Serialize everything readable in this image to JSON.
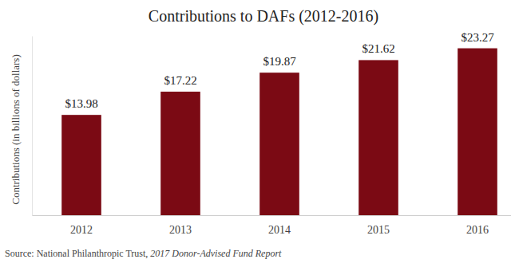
{
  "chart_data": {
    "type": "bar",
    "title": "Contributions to DAFs (2012-2016)",
    "y_label": "Contributions (in billions of dollars)",
    "annotations": [
      "Source: National Philanthropic Trust, ",
      "2017 Donor-Advised Fund Report"
    ],
    "categories": [
      "2012",
      "2013",
      "2014",
      "2015",
      "2016"
    ],
    "values": [
      13.98,
      17.22,
      19.87,
      21.62,
      23.27
    ],
    "value_labels": [
      "$13.98",
      "$17.22",
      "$19.87",
      "$21.62",
      "$23.27"
    ],
    "color": "#7b0a14",
    "ylim": [
      0,
      25
    ],
    "grid": false,
    "data_labels": true,
    "tick_labels": "x"
  }
}
